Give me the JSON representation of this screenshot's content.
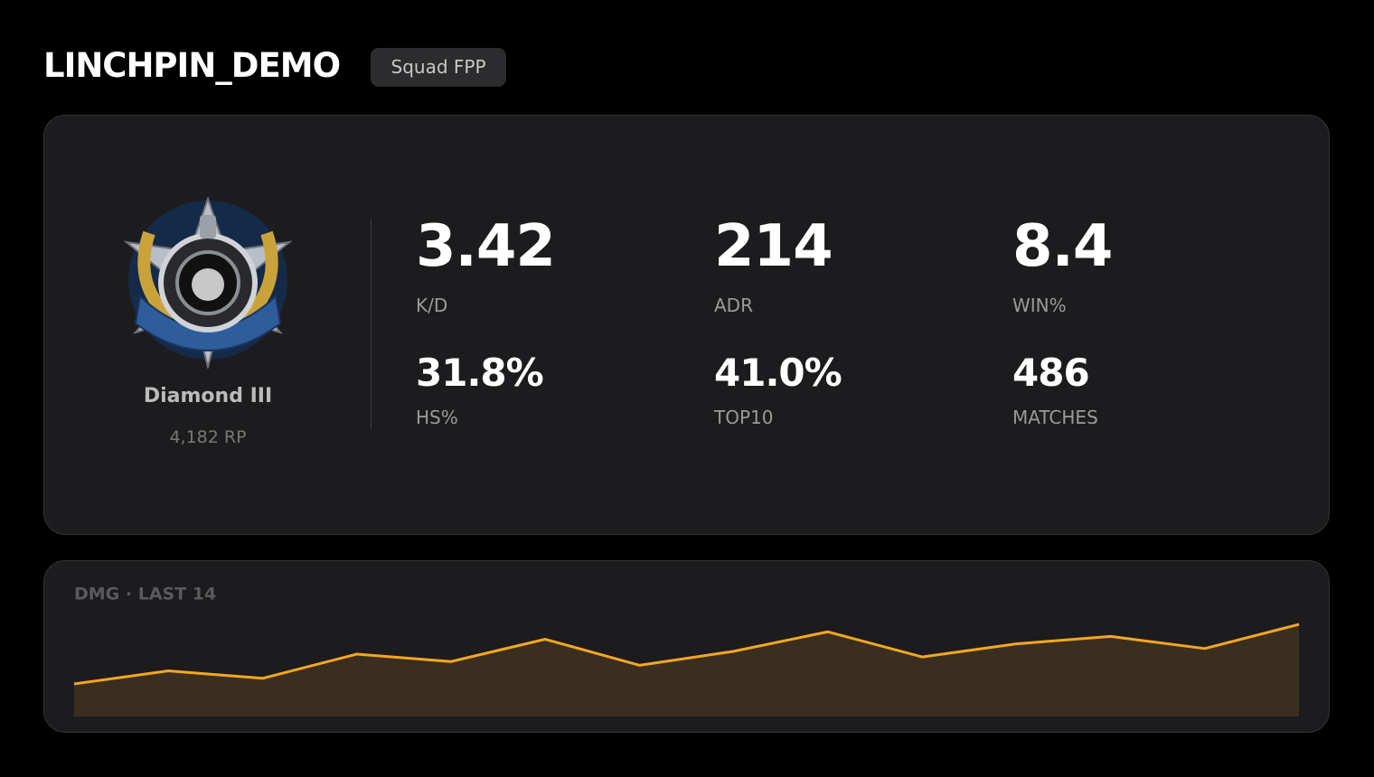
{
  "header": {
    "title": "LINCHPIN_DEMO",
    "badge": "Squad FPP"
  },
  "rank": {
    "name": "Diamond III",
    "points": "4,182 RP"
  },
  "stats": [
    {
      "value": "3.42",
      "label": "K/D"
    },
    {
      "value": "214",
      "label": "ADR"
    },
    {
      "value": "8.4",
      "label": "WIN%"
    },
    {
      "value": "31.8%",
      "label": "HS%"
    },
    {
      "value": "41.0%",
      "label": "TOP10"
    },
    {
      "value": "486",
      "label": "MATCHES"
    }
  ],
  "chart_data": {
    "type": "line",
    "title": "DMG · LAST 14",
    "values": [
      105,
      147,
      123,
      201,
      177,
      249,
      165,
      210,
      273,
      192,
      234,
      258,
      219,
      297
    ],
    "ylim": [
      0,
      300
    ],
    "color": "#f5a623",
    "fill": "#3a2f1f"
  }
}
